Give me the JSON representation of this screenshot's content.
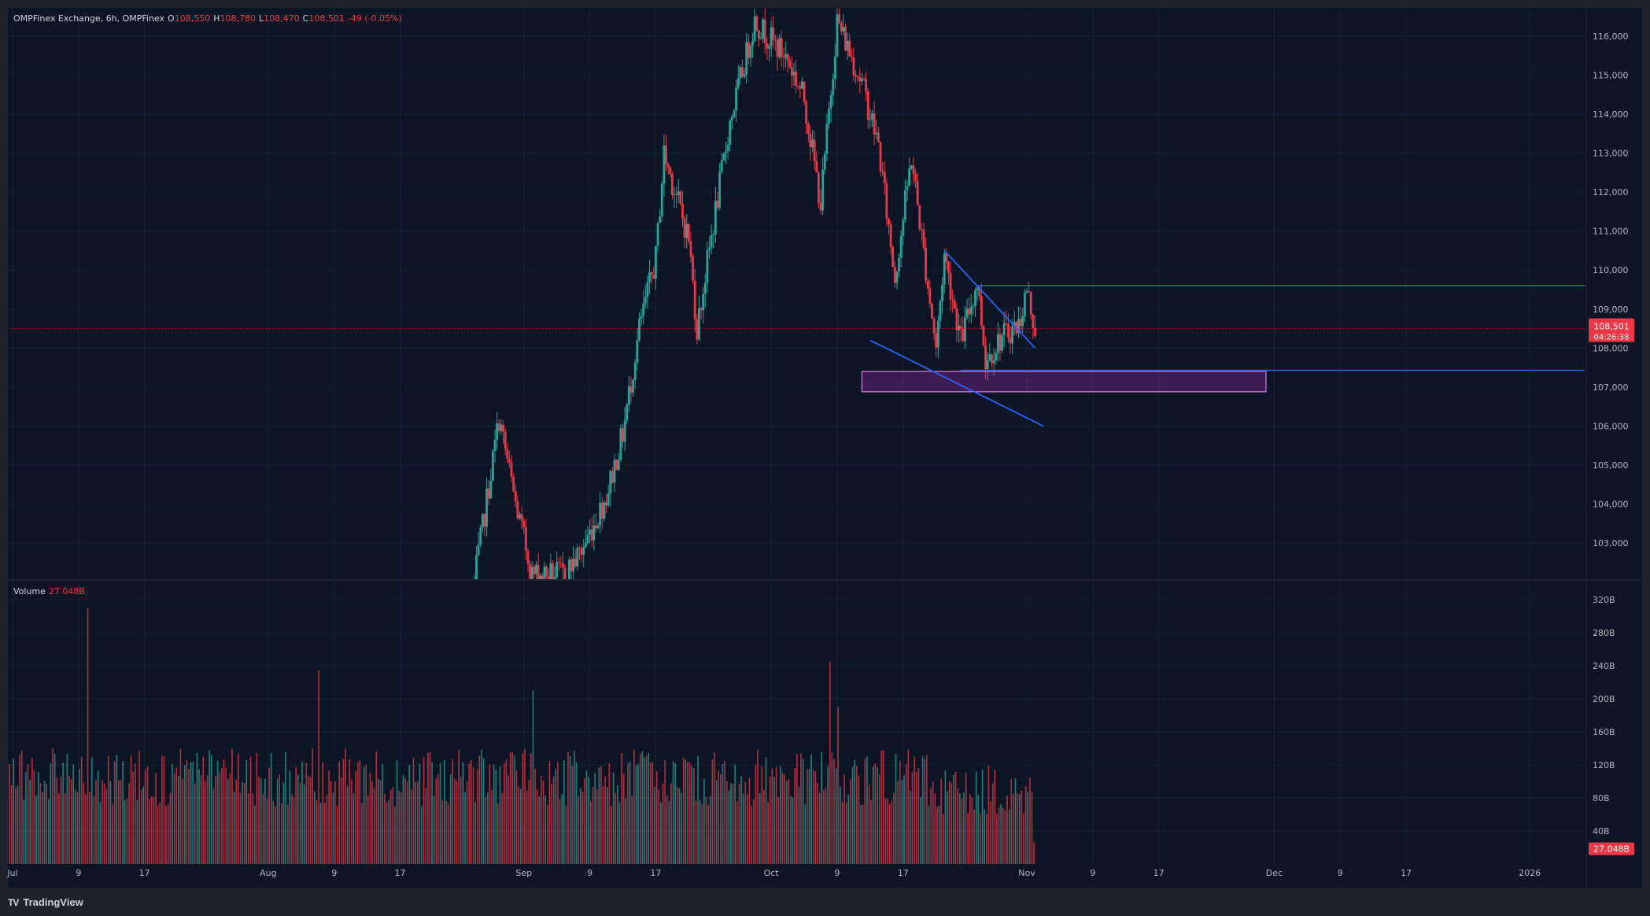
{
  "header": {
    "symbol": "OMPFinex Exchange, 6h, OMPFinex",
    "o_label": "O",
    "o_value": "108,550",
    "h_label": "H",
    "h_value": "108,780",
    "l_label": "L",
    "l_value": "108,470",
    "c_label": "C",
    "c_value": "108,501",
    "change": "-49 (-0.05%)"
  },
  "volume_legend": {
    "label": "Volume",
    "value": "27.048B"
  },
  "price_badge": {
    "price": "108,501",
    "countdown": "04:26:38"
  },
  "volume_badge": "27.048B",
  "brand": {
    "logo": "TV",
    "name": "TradingView"
  },
  "colors": {
    "background": "#0b1523",
    "frame": "#1e222d",
    "up": "#26a69a",
    "down": "#f23645",
    "trendline": "#2962ff",
    "zone": "#9c27b0",
    "grid": "#16243a",
    "text": "#b2b5be"
  },
  "chart_data": [
    {
      "type": "candlestick",
      "symbol": "OMPFinex Exchange",
      "interval": "6h",
      "ylim": [
        102000,
        116500
      ],
      "y_ticks": [
        "103,000",
        "104,000",
        "105,000",
        "106,000",
        "107,000",
        "108,000",
        "109,000",
        "110,000",
        "111,000",
        "112,000",
        "113,000",
        "114,000",
        "115,000",
        "116,000"
      ],
      "x_ticks": [
        "Jul",
        "9",
        "17",
        "Aug",
        "9",
        "17",
        "Sep",
        "9",
        "17",
        "Oct",
        "9",
        "17",
        "Nov",
        "9",
        "17",
        "Dec",
        "9",
        "17",
        "2026"
      ],
      "last_price": 108501,
      "close_path": [
        {
          "date": "2025-08-26",
          "price": 102000
        },
        {
          "date": "2025-08-29",
          "price": 106200
        },
        {
          "date": "2025-08-31",
          "price": 104000
        },
        {
          "date": "2025-09-02",
          "price": 102200
        },
        {
          "date": "2025-09-06",
          "price": 102200
        },
        {
          "date": "2025-09-08",
          "price": 102800
        },
        {
          "date": "2025-09-11",
          "price": 104200
        },
        {
          "date": "2025-09-13",
          "price": 105800
        },
        {
          "date": "2025-09-15",
          "price": 108500
        },
        {
          "date": "2025-09-17",
          "price": 110300
        },
        {
          "date": "2025-09-18",
          "price": 113000
        },
        {
          "date": "2025-09-21",
          "price": 110800
        },
        {
          "date": "2025-09-22",
          "price": 108500
        },
        {
          "date": "2025-09-24",
          "price": 111200
        },
        {
          "date": "2025-09-26",
          "price": 113800
        },
        {
          "date": "2025-09-29",
          "price": 116400
        },
        {
          "date": "2025-10-03",
          "price": 115400
        },
        {
          "date": "2025-10-05",
          "price": 114400
        },
        {
          "date": "2025-10-07",
          "price": 111700
        },
        {
          "date": "2025-10-09",
          "price": 116400
        },
        {
          "date": "2025-10-12",
          "price": 114800
        },
        {
          "date": "2025-10-14",
          "price": 113200
        },
        {
          "date": "2025-10-16",
          "price": 109800
        },
        {
          "date": "2025-10-18",
          "price": 112900
        },
        {
          "date": "2025-10-21",
          "price": 108000
        },
        {
          "date": "2025-10-22",
          "price": 110400
        },
        {
          "date": "2025-10-24",
          "price": 108200
        },
        {
          "date": "2025-10-26",
          "price": 109700
        },
        {
          "date": "2025-10-27",
          "price": 107700
        },
        {
          "date": "2025-10-29",
          "price": 108300
        },
        {
          "date": "2025-10-31",
          "price": 108600
        },
        {
          "date": "2025-11-01",
          "price": 109500
        },
        {
          "date": "2025-11-02",
          "price": 108501
        }
      ],
      "drawings": {
        "horizontal_lines": [
          109600,
          107430
        ],
        "descending_wedge_upper": [
          {
            "date": "2025-10-22",
            "price": 110500
          },
          {
            "date": "2025-11-02",
            "price": 108000
          }
        ],
        "descending_wedge_lower": [
          {
            "date": "2025-10-13",
            "price": 108200
          },
          {
            "date": "2025-11-03",
            "price": 106000
          }
        ],
        "demand_zone": {
          "from_date": "2025-10-12",
          "to_date": "2025-11-30",
          "top": 107400,
          "bottom": 106880
        }
      }
    },
    {
      "type": "bar",
      "title": "Volume",
      "ylim": [
        0,
        330
      ],
      "unit": "B",
      "y_ticks": [
        "40B",
        "80B",
        "120B",
        "160B",
        "200B",
        "240B",
        "280B",
        "320B"
      ],
      "last_value": 27.048,
      "typical_range": [
        70,
        140
      ],
      "peaks": [
        {
          "date": "2025-07-10",
          "value": 310
        },
        {
          "date": "2025-08-07",
          "value": 235
        },
        {
          "date": "2025-09-02",
          "value": 210
        },
        {
          "date": "2025-10-08",
          "value": 245
        },
        {
          "date": "2025-10-09",
          "value": 190
        }
      ]
    }
  ]
}
